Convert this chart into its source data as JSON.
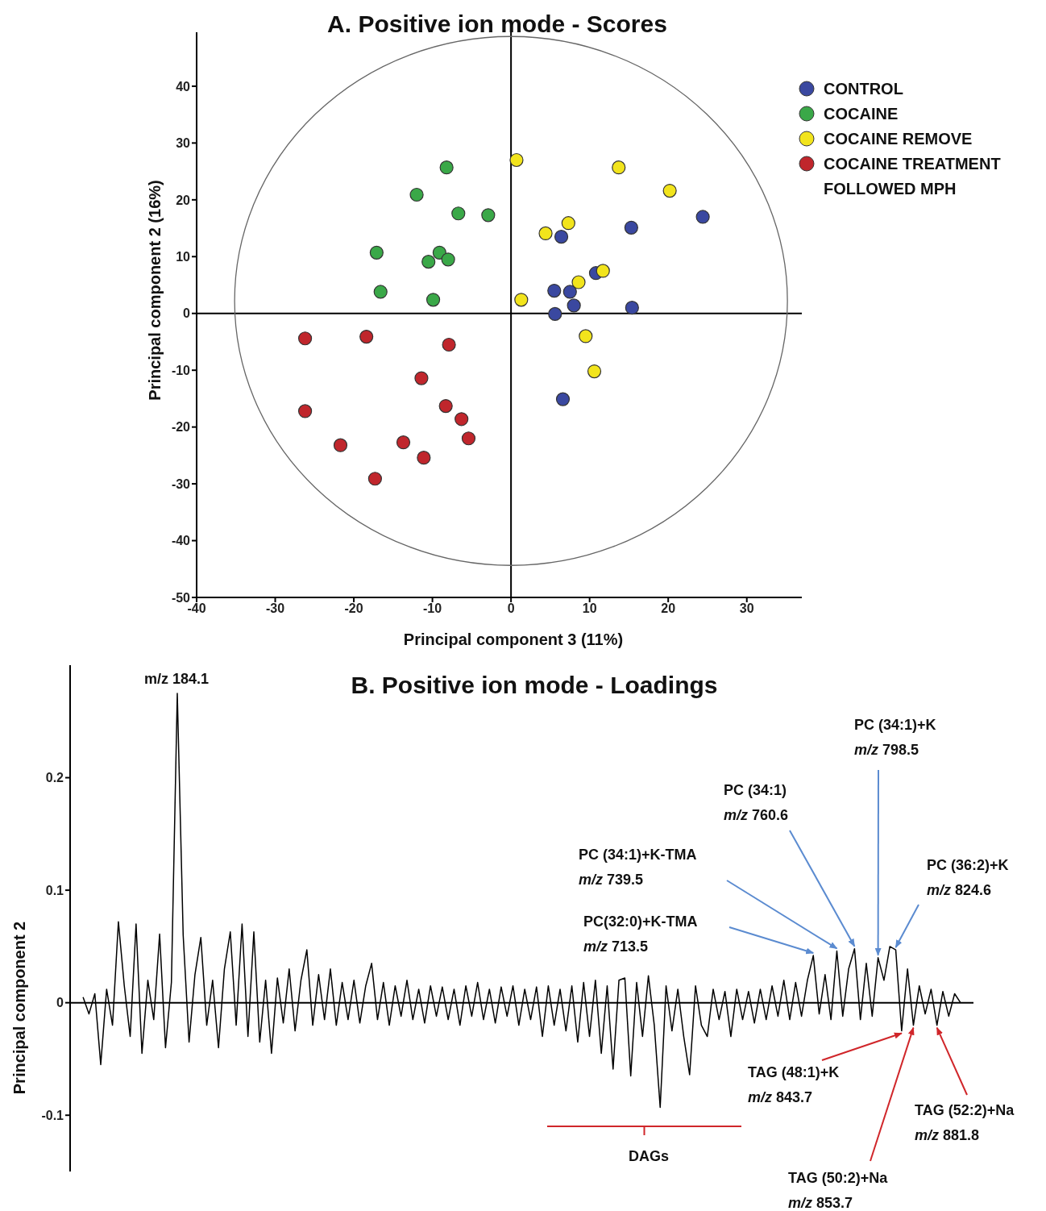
{
  "chart_data": [
    {
      "type": "scatter",
      "title": "A. Positive ion mode - Scores",
      "xlabel": "Principal component 3 (11%)",
      "ylabel": "Principal component  2 (16%)",
      "xlim": [
        -40,
        37
      ],
      "ylim": [
        -50,
        49.5
      ],
      "xticks": [
        -40,
        -30,
        -20,
        -10,
        0,
        10,
        20,
        30
      ],
      "yticks": [
        -50,
        -40,
        -30,
        -20,
        -10,
        0,
        10,
        20,
        30,
        40
      ],
      "legend": "top right",
      "marker": "circle",
      "ref_lines": [
        {
          "axis": "x",
          "value": 0,
          "color": "#000000"
        },
        {
          "axis": "y",
          "value": 0,
          "color": "#000000"
        }
      ],
      "series": [
        {
          "name": "CONTROL",
          "color": "#3a48a0",
          "x": [
            6.4,
            15.3,
            24.4,
            10.8,
            5.5,
            7.5,
            8.0,
            5.6,
            15.4,
            6.6
          ],
          "values": [
            13.5,
            15.1,
            17.0,
            7.1,
            4.0,
            3.8,
            1.4,
            -0.1,
            1.0,
            -15.1
          ]
        },
        {
          "name": "COCAINE",
          "color": "#3aa848",
          "x": [
            -8.2,
            -12.0,
            -6.7,
            -2.9,
            -17.1,
            -9.1,
            -10.5,
            -8.0,
            -16.6,
            -9.9
          ],
          "values": [
            25.7,
            20.9,
            17.6,
            17.3,
            10.7,
            10.7,
            9.1,
            9.5,
            3.8,
            2.4
          ]
        },
        {
          "name": "COCAINE REMOVE",
          "color": "#f2e41c",
          "x": [
            0.7,
            13.7,
            20.2,
            7.3,
            4.4,
            11.7,
            8.6,
            1.3,
            9.5,
            10.6
          ],
          "values": [
            27.0,
            25.7,
            21.6,
            15.9,
            14.1,
            7.5,
            5.5,
            2.4,
            -4.0,
            -10.2
          ]
        },
        {
          "name": "COCAINE TREATMENT FOLLOWED MPH",
          "color": "#c0262c",
          "x": [
            -26.2,
            -18.4,
            -7.9,
            -11.4,
            -26.2,
            -8.3,
            -6.3,
            -5.4,
            -21.7,
            -13.7,
            -11.1,
            -17.3
          ],
          "values": [
            -4.4,
            -4.1,
            -5.5,
            -11.4,
            -17.2,
            -16.3,
            -18.6,
            -22.0,
            -23.2,
            -22.7,
            -25.4,
            -29.1
          ]
        }
      ]
    },
    {
      "type": "line",
      "title": "B. Positive ion mode - Loadings",
      "ylabel": "Principal component 2",
      "ylim": [
        -0.15,
        0.3
      ],
      "yticks": [
        -0.1,
        0,
        0.1,
        0.2
      ],
      "tick_labels": "y",
      "ref_lines": [
        {
          "axis": "y",
          "value": 0,
          "color": "#000000"
        }
      ],
      "annotations": [
        "m/z 184.1",
        "PC (34:1)+K\nm/z 798.5",
        "PC (34:1)\nm/z 760.6",
        "PC (36:2)+K\nm/z 824.6",
        "PC (34:1)+K-TMA\nm/z 739.5",
        "PC(32:0)+K-TMA\nm/z 713.5",
        "TAG (48:1)+K\nm/z 843.7",
        "TAG (50:2)+Na\nm/z 853.7",
        "TAG (52:2)+Na\nm/z 881.8",
        "DAGs"
      ],
      "categories": [
        null,
        null,
        null,
        null,
        null,
        null,
        null,
        null,
        null,
        null,
        null,
        null,
        null,
        null,
        null,
        null,
        null,
        null,
        null,
        null,
        null,
        null,
        null,
        null,
        null,
        null,
        null,
        null,
        null,
        null,
        null,
        null,
        null,
        null,
        null,
        null,
        null,
        null,
        null,
        null,
        null,
        null,
        null,
        null,
        null,
        null,
        null,
        null,
        null,
        null,
        null,
        null,
        null,
        null,
        null,
        null,
        null,
        null,
        null,
        null,
        null,
        null,
        null,
        null,
        null,
        null,
        null,
        null,
        null,
        null,
        null,
        null,
        null,
        null,
        null,
        null,
        null,
        null,
        null,
        null,
        null,
        null,
        null,
        null,
        null,
        null,
        null,
        null,
        null,
        null,
        null,
        null,
        null,
        null,
        null,
        null,
        null,
        null,
        null,
        null,
        null,
        null,
        null,
        null,
        null,
        null,
        null,
        null,
        null,
        null,
        null,
        null,
        null,
        null,
        null,
        null,
        null,
        null,
        null,
        null,
        null,
        null,
        null,
        null,
        null,
        null,
        null,
        null,
        null,
        null,
        null,
        null,
        null,
        null,
        null,
        null,
        null,
        null,
        null,
        null,
        null,
        null,
        null,
        null,
        null,
        null,
        null,
        null,
        null,
        null
      ],
      "series": [
        {
          "color": "#000000",
          "values": [
            0.005,
            -0.01,
            0.008,
            -0.055,
            0.012,
            -0.02,
            0.072,
            0.015,
            -0.03,
            0.07,
            -0.045,
            0.02,
            -0.015,
            0.061,
            -0.04,
            0.018,
            0.275,
            0.06,
            -0.035,
            0.025,
            0.058,
            -0.02,
            0.02,
            -0.04,
            0.03,
            0.063,
            -0.02,
            0.07,
            -0.03,
            0.063,
            -0.035,
            0.02,
            -0.045,
            0.022,
            -0.018,
            0.03,
            -0.025,
            0.02,
            0.047,
            -0.02,
            0.025,
            -0.015,
            0.03,
            -0.02,
            0.018,
            -0.015,
            0.02,
            -0.018,
            0.015,
            0.035,
            -0.015,
            0.018,
            -0.02,
            0.015,
            -0.012,
            0.02,
            -0.015,
            0.012,
            -0.018,
            0.015,
            -0.012,
            0.014,
            -0.015,
            0.012,
            -0.02,
            0.015,
            -0.012,
            0.018,
            -0.015,
            0.012,
            -0.018,
            0.014,
            -0.012,
            0.015,
            -0.02,
            0.012,
            -0.015,
            0.014,
            -0.03,
            0.015,
            -0.02,
            0.012,
            -0.025,
            0.015,
            -0.035,
            0.018,
            -0.03,
            0.02,
            -0.045,
            0.015,
            -0.059,
            0.02,
            0.022,
            -0.065,
            0.018,
            -0.03,
            0.024,
            -0.02,
            -0.093,
            0.015,
            -0.025,
            0.012,
            -0.03,
            -0.064,
            0.015,
            -0.02,
            -0.03,
            0.012,
            -0.015,
            0.01,
            -0.03,
            0.012,
            -0.015,
            0.01,
            -0.018,
            0.012,
            -0.015,
            0.015,
            -0.012,
            0.02,
            -0.015,
            0.018,
            -0.012,
            0.02,
            0.042,
            -0.01,
            0.025,
            -0.015,
            0.046,
            -0.012,
            0.03,
            0.048,
            -0.015,
            0.035,
            -0.012,
            0.04,
            0.02,
            0.05,
            0.047,
            -0.025,
            0.03,
            -0.02,
            0.015,
            -0.01,
            0.012,
            -0.02,
            0.01,
            -0.012,
            0.008,
            0
          ]
        }
      ]
    }
  ]
}
